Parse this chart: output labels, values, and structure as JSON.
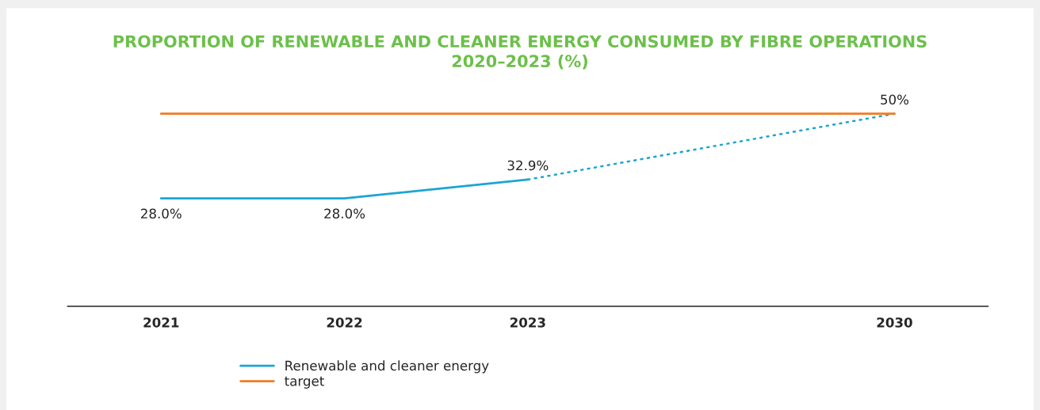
{
  "chart_data": {
    "type": "line",
    "title": "PROPORTION OF RENEWABLE AND CLEANER ENERGY CONSUMED BY FIBRE OPERATIONS\n2020–2023 (%)",
    "categories": [
      "2021",
      "2022",
      "2023",
      null,
      "2030"
    ],
    "series": [
      {
        "name": "Renewable and cleaner energy",
        "color": "#1ba5d2",
        "values": [
          28.0,
          28.0,
          32.9,
          null,
          null
        ],
        "value_labels": [
          "28.0%",
          "28.0%",
          "32.9%",
          null,
          null
        ],
        "line_style": "solid"
      },
      {
        "color": "#1ba5d2",
        "values": [
          null,
          null,
          32.9,
          null,
          50
        ],
        "value_labels": [
          null,
          null,
          null,
          null,
          "50%"
        ],
        "line_style": "dotted"
      },
      {
        "name": "target",
        "color": "#f47b20",
        "values": [
          50,
          50,
          50,
          50,
          50
        ],
        "line_style": "solid"
      }
    ],
    "tick_labels": "x",
    "grid": false,
    "legend": "bottom",
    "marker": "none"
  }
}
